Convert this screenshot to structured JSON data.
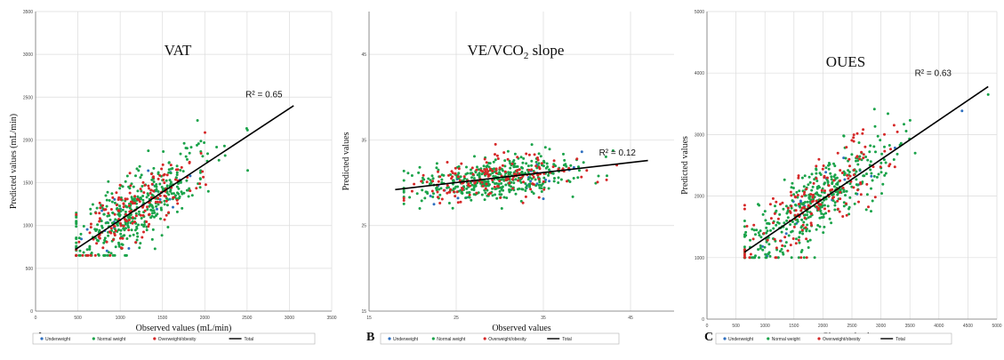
{
  "colors": {
    "underweight": "#2e6fc0",
    "normal_weight": "#1aa34a",
    "overweight_obesity": "#d62828",
    "total": "#000000",
    "grid": "#dcdcdc",
    "legend_border": "#b0b0b0"
  },
  "chart_data": [
    {
      "type": "scatter",
      "panel_letter": "A",
      "title": "VAT",
      "title_subscript": "",
      "title_suffix": "",
      "xlabel": "Observed values (mL/min)",
      "ylabel": "Predicted values (mL/min)",
      "xlim": [
        0,
        3500
      ],
      "ylim": [
        0,
        3500
      ],
      "x_ticks": [
        "0",
        "500",
        "1000",
        "1500",
        "2000",
        "2500",
        "3000",
        "3500"
      ],
      "y_ticks": [
        "0",
        "500",
        "1000",
        "1500",
        "2000",
        "2500",
        "3000",
        "3500"
      ],
      "grid": true,
      "r2_label": "R² = 0.65",
      "r2_position": [
        2700,
        2500
      ],
      "trend_line": {
        "x": [
          470,
          3050
        ],
        "y": [
          720,
          2400
        ]
      },
      "cloud": {
        "x_mean": 1180,
        "x_sd": 380,
        "x_min": 480,
        "x_max": 3050,
        "slope": 0.65,
        "intercept": 420,
        "resid_sd": 210,
        "y_min": 650,
        "y_max": 2450
      },
      "series": [
        {
          "name": "Underweight",
          "key": "underweight",
          "count": 25
        },
        {
          "name": "Normal weight",
          "key": "normal_weight",
          "count": 420
        },
        {
          "name": "Overweight/obesity",
          "key": "overweight_obesity",
          "count": 170
        },
        {
          "name": "Total",
          "key": "total",
          "kind": "line"
        }
      ]
    },
    {
      "type": "scatter",
      "panel_letter": "B",
      "title": "VE/VCO",
      "title_subscript": "2",
      "title_suffix": " slope",
      "xlabel": "Observed values",
      "ylabel": "Predicted values",
      "xlim": [
        15,
        50
      ],
      "ylim": [
        15,
        50
      ],
      "x_ticks": [
        "15",
        "25",
        "35",
        "45"
      ],
      "y_ticks": [
        "15",
        "25",
        "35",
        "45"
      ],
      "x_tick_values": [
        15,
        25,
        35,
        45
      ],
      "y_tick_values": [
        15,
        25,
        35,
        45
      ],
      "grid": true,
      "r2_label": "R² = 0.12",
      "r2_position": [
        43.5,
        33.2
      ],
      "trend_line": {
        "x": [
          18,
          47
        ],
        "y": [
          29.2,
          32.6
        ]
      },
      "cloud": {
        "x_mean": 29.5,
        "x_sd": 4.3,
        "x_min": 19,
        "x_max": 46,
        "slope": 0.12,
        "intercept": 26.8,
        "resid_sd": 1.2,
        "y_min": 27,
        "y_max": 36.5
      },
      "series": [
        {
          "name": "Underweight",
          "key": "underweight",
          "count": 25
        },
        {
          "name": "Normal weight",
          "key": "normal_weight",
          "count": 420
        },
        {
          "name": "Overweight/obesity",
          "key": "overweight_obesity",
          "count": 170
        },
        {
          "name": "Total",
          "key": "total",
          "kind": "line"
        }
      ]
    },
    {
      "type": "scatter",
      "panel_letter": "C",
      "title": "OUES",
      "title_subscript": "",
      "title_suffix": "",
      "xlabel": "Observed values",
      "ylabel": "Predicted values",
      "xlim": [
        0,
        5000
      ],
      "ylim": [
        0,
        5000
      ],
      "x_ticks": [
        "0",
        "500",
        "1000",
        "1500",
        "2000",
        "2500",
        "3000",
        "3500",
        "4000",
        "4500",
        "5000"
      ],
      "y_ticks": [
        "0",
        "1000",
        "2000",
        "3000",
        "4000",
        "5000"
      ],
      "grid": true,
      "r2_label": "R² = 0.63",
      "r2_position": [
        3900,
        3950
      ],
      "trend_line": {
        "x": [
          650,
          4850
        ],
        "y": [
          1090,
          3780
        ]
      },
      "cloud": {
        "x_mean": 1900,
        "x_sd": 650,
        "x_min": 650,
        "x_max": 4850,
        "slope": 0.64,
        "intercept": 670,
        "resid_sd": 300,
        "y_min": 1000,
        "y_max": 3650
      },
      "series": [
        {
          "name": "Underweight",
          "key": "underweight",
          "count": 25
        },
        {
          "name": "Normal weight",
          "key": "normal_weight",
          "count": 420
        },
        {
          "name": "Overweight/obesity",
          "key": "overweight_obesity",
          "count": 170
        },
        {
          "name": "Total",
          "key": "total",
          "kind": "line"
        }
      ]
    }
  ]
}
